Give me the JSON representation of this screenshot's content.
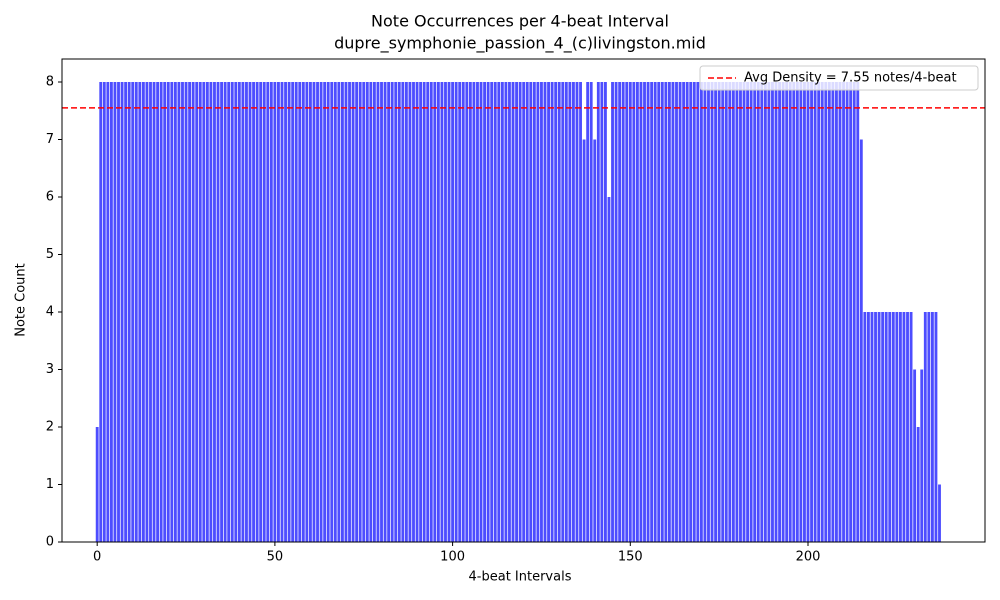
{
  "chart_data": {
    "type": "bar",
    "title": "Note Occurrences per 4-beat Interval",
    "subtitle": "dupre_symphonie_passion_4_(c)livingston.mid",
    "xlabel": "4-beat Intervals",
    "ylabel": "Note Count",
    "color": "#4d4dff",
    "x": [
      0,
      1,
      2,
      3,
      4,
      5,
      6,
      7,
      8,
      9,
      10,
      11,
      12,
      13,
      14,
      15,
      16,
      17,
      18,
      19,
      20,
      21,
      22,
      23,
      24,
      25,
      26,
      27,
      28,
      29,
      30,
      31,
      32,
      33,
      34,
      35,
      36,
      37,
      38,
      39,
      40,
      41,
      42,
      43,
      44,
      45,
      46,
      47,
      48,
      49,
      50,
      51,
      52,
      53,
      54,
      55,
      56,
      57,
      58,
      59,
      60,
      61,
      62,
      63,
      64,
      65,
      66,
      67,
      68,
      69,
      70,
      71,
      72,
      73,
      74,
      75,
      76,
      77,
      78,
      79,
      80,
      81,
      82,
      83,
      84,
      85,
      86,
      87,
      88,
      89,
      90,
      91,
      92,
      93,
      94,
      95,
      96,
      97,
      98,
      99,
      100,
      101,
      102,
      103,
      104,
      105,
      106,
      107,
      108,
      109,
      110,
      111,
      112,
      113,
      114,
      115,
      116,
      117,
      118,
      119,
      120,
      121,
      122,
      123,
      124,
      125,
      126,
      127,
      128,
      129,
      130,
      131,
      132,
      133,
      134,
      135,
      136,
      137,
      138,
      139,
      140,
      141,
      142,
      143,
      144,
      145,
      146,
      147,
      148,
      149,
      150,
      151,
      152,
      153,
      154,
      155,
      156,
      157,
      158,
      159,
      160,
      161,
      162,
      163,
      164,
      165,
      166,
      167,
      168,
      169,
      170,
      171,
      172,
      173,
      174,
      175,
      176,
      177,
      178,
      179,
      180,
      181,
      182,
      183,
      184,
      185,
      186,
      187,
      188,
      189,
      190,
      191,
      192,
      193,
      194,
      195,
      196,
      197,
      198,
      199,
      200,
      201,
      202,
      203,
      204,
      205,
      206,
      207,
      208,
      209,
      210,
      211,
      212,
      213,
      214,
      215,
      216,
      217,
      218,
      219,
      220,
      221,
      222,
      223,
      224,
      225,
      226,
      227,
      228,
      229,
      230,
      231,
      232,
      233,
      234,
      235,
      236,
      237
    ],
    "values": [
      2,
      8,
      8,
      8,
      8,
      8,
      8,
      8,
      8,
      8,
      8,
      8,
      8,
      8,
      8,
      8,
      8,
      8,
      8,
      8,
      8,
      8,
      8,
      8,
      8,
      8,
      8,
      8,
      8,
      8,
      8,
      8,
      8,
      8,
      8,
      8,
      8,
      8,
      8,
      8,
      8,
      8,
      8,
      8,
      8,
      8,
      8,
      8,
      8,
      8,
      8,
      8,
      8,
      8,
      8,
      8,
      8,
      8,
      8,
      8,
      8,
      8,
      8,
      8,
      8,
      8,
      8,
      8,
      8,
      8,
      8,
      8,
      8,
      8,
      8,
      8,
      8,
      8,
      8,
      8,
      8,
      8,
      8,
      8,
      8,
      8,
      8,
      8,
      8,
      8,
      8,
      8,
      8,
      8,
      8,
      8,
      8,
      8,
      8,
      8,
      8,
      8,
      8,
      8,
      8,
      8,
      8,
      8,
      8,
      8,
      8,
      8,
      8,
      8,
      8,
      8,
      8,
      8,
      8,
      8,
      8,
      8,
      8,
      8,
      8,
      8,
      8,
      8,
      8,
      8,
      8,
      8,
      8,
      8,
      8,
      8,
      8,
      7,
      8,
      8,
      7,
      8,
      8,
      8,
      6,
      8,
      8,
      8,
      8,
      8,
      8,
      8,
      8,
      8,
      8,
      8,
      8,
      8,
      8,
      8,
      8,
      8,
      8,
      8,
      8,
      8,
      8,
      8,
      8,
      8,
      8,
      8,
      8,
      8,
      8,
      8,
      8,
      8,
      8,
      8,
      8,
      8,
      8,
      8,
      8,
      8,
      8,
      8,
      8,
      8,
      8,
      8,
      8,
      8,
      8,
      8,
      8,
      8,
      8,
      8,
      8,
      8,
      8,
      8,
      8,
      8,
      8,
      8,
      8,
      8,
      8,
      8,
      8,
      8,
      8,
      7,
      4,
      4,
      4,
      4,
      4,
      4,
      4,
      4,
      4,
      4,
      4,
      4,
      4,
      4,
      3,
      2,
      3,
      4,
      4,
      4,
      4,
      1
    ],
    "avg_line": {
      "value": 7.55,
      "label": "Avg Density = 7.55 notes/4-beat",
      "color": "#ff0000"
    },
    "legend": "upper right",
    "xlim": [
      -9.9,
      249.8
    ],
    "ylim": [
      0,
      8.4
    ],
    "xticks": [
      0,
      50,
      100,
      150,
      200
    ],
    "yticks": [
      0,
      1,
      2,
      3,
      4,
      5,
      6,
      7,
      8
    ]
  }
}
